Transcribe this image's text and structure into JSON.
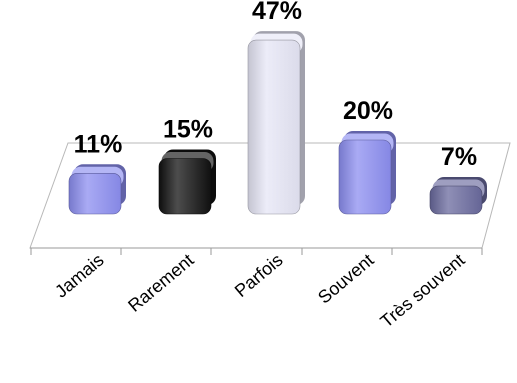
{
  "chart_data": {
    "type": "bar",
    "categories": [
      "Jamais",
      "Rarement",
      "Parfois",
      "Souvent",
      "Très souvent"
    ],
    "values": [
      11,
      15,
      47,
      20,
      7
    ],
    "value_labels": [
      "11%",
      "15%",
      "47%",
      "20%",
      "7%"
    ],
    "unit": "%",
    "ylim": [
      0,
      50
    ],
    "grid": false,
    "legend": "none",
    "style": "3d-rounded-bars",
    "colors": [
      "#8c8ef0",
      "#111111",
      "#e6e6f6",
      "#8c8ef0",
      "#6a6a9e"
    ]
  }
}
